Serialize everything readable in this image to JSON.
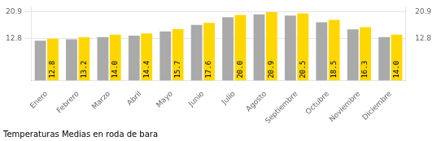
{
  "chart_data": {
    "type": "bar",
    "title": "Temperaturas Medias en roda de bara",
    "categories": [
      "Enero",
      "Febrero",
      "Marzo",
      "Abril",
      "Mayo",
      "Junio",
      "Julio",
      "Agosto",
      "Septiembre",
      "Octubre",
      "Noviembre",
      "Diciembre"
    ],
    "series": [
      {
        "color": "#AAAAAA",
        "values": [
          12.2,
          12.6,
          13.3,
          13.7,
          15.0,
          17.0,
          19.3,
          20.2,
          19.8,
          17.8,
          15.6,
          13.3
        ]
      },
      {
        "color": "#FFD700",
        "values": [
          12.8,
          13.2,
          14.0,
          14.4,
          15.7,
          17.6,
          20.0,
          20.9,
          20.5,
          18.5,
          16.3,
          14.0
        ],
        "data_labels": true,
        "value_labels": [
          "12.8",
          "13.2",
          "14.0",
          "14.4",
          "15.7",
          "17.6",
          "20.0",
          "20.9",
          "20.5",
          "18.5",
          "16.3",
          "14.0"
        ]
      }
    ],
    "ylim": [
      0,
      22.5
    ],
    "yticks": [
      12.8,
      20.9
    ],
    "y2lim": [
      0,
      22.5
    ],
    "y2ticks": [
      12.8,
      20.9
    ],
    "grid": true
  }
}
